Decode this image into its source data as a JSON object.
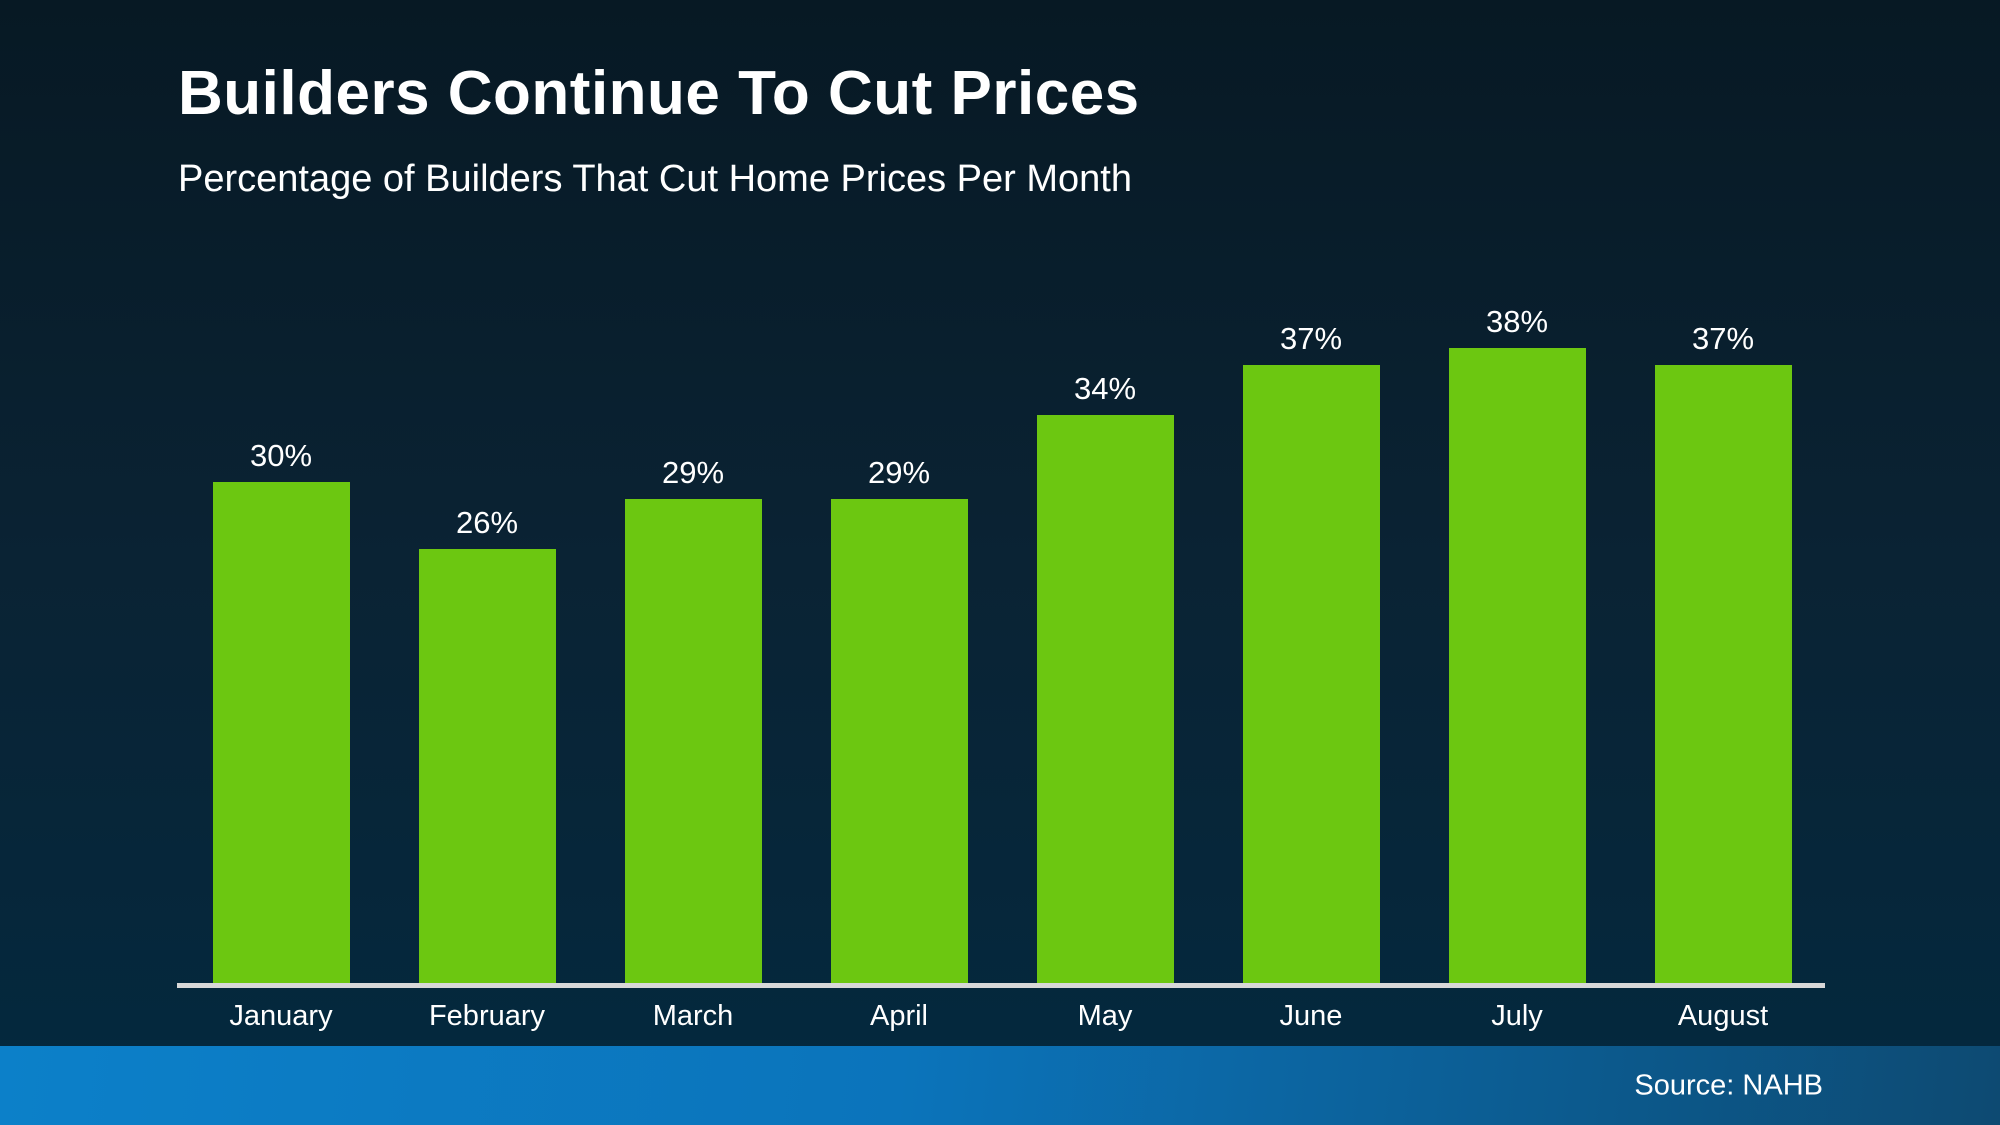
{
  "slide": {
    "title": "Builders Continue To Cut Prices",
    "subtitle": "Percentage of Builders That Cut Home Prices Per Month"
  },
  "chart_data": {
    "type": "bar",
    "title": "Builders Continue To Cut Prices",
    "subtitle": "Percentage of Builders That Cut Home Prices Per Month",
    "categories": [
      "January",
      "February",
      "March",
      "April",
      "May",
      "June",
      "July",
      "August"
    ],
    "values": [
      30,
      26,
      29,
      29,
      34,
      37,
      38,
      37
    ],
    "value_labels": [
      "30%",
      "26%",
      "29%",
      "29%",
      "34%",
      "37%",
      "38%",
      "37%"
    ],
    "unit": "%",
    "xlabel": "",
    "ylabel": "",
    "ylim": [
      0,
      42
    ],
    "grid": false,
    "legend": false,
    "data_labels_position": "above-bars"
  },
  "footer": {
    "source_label": "Source: NAHB"
  },
  "colors": {
    "bar_green": "#6cc711",
    "axis_line": "#d8d8d8",
    "text": "#ffffff",
    "background_top": "#071924",
    "background_mid": "#0a2334",
    "background_bottom": "#03293f",
    "footer_gradient_left": "#0c80c9",
    "footer_gradient_right": "#0d4a72"
  }
}
